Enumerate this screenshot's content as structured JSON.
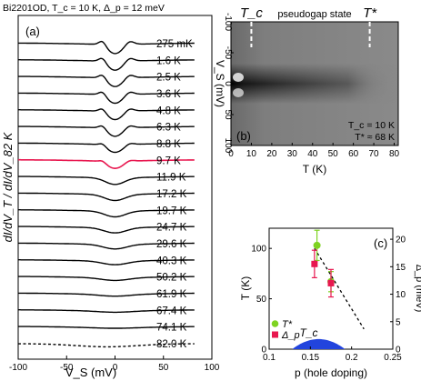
{
  "figure_title": "Bi2201OD, T_c = 10 K, Δ_p = 12 meV",
  "chart_data": [
    {
      "id": "a",
      "panel_label": "(a)",
      "type": "line",
      "xlabel": "V_S (mV)",
      "ylabel": "dI/dV_T / dI/dV_82 K",
      "xlim": [
        -100,
        100
      ],
      "xticks": [
        -100,
        -50,
        0,
        50,
        100
      ],
      "highlight_color": "#e8174f",
      "series": [
        {
          "name": "275 mK",
          "depth": 0.3,
          "width": 11,
          "coherence": 0.17,
          "color": "#000000"
        },
        {
          "name": "1.6 K",
          "depth": 0.3,
          "width": 11,
          "coherence": 0.16,
          "color": "#000000"
        },
        {
          "name": "2.5 K",
          "depth": 0.29,
          "width": 11,
          "coherence": 0.15,
          "color": "#000000"
        },
        {
          "name": "3.6 K",
          "depth": 0.29,
          "width": 11,
          "coherence": 0.14,
          "color": "#000000"
        },
        {
          "name": "4.8 K",
          "depth": 0.28,
          "width": 11,
          "coherence": 0.13,
          "color": "#000000"
        },
        {
          "name": "6.3 K",
          "depth": 0.28,
          "width": 11,
          "coherence": 0.12,
          "color": "#000000"
        },
        {
          "name": "8.8 K",
          "depth": 0.26,
          "width": 12,
          "coherence": 0.09,
          "color": "#000000"
        },
        {
          "name": "9.7 K",
          "depth": 0.24,
          "width": 12,
          "coherence": 0.07,
          "color": "#e8174f"
        },
        {
          "name": "11.9 K",
          "depth": 0.22,
          "width": 14,
          "coherence": 0.0,
          "color": "#000000"
        },
        {
          "name": "17.2 K",
          "depth": 0.2,
          "width": 15,
          "coherence": 0.0,
          "color": "#000000"
        },
        {
          "name": "19.7 K",
          "depth": 0.19,
          "width": 15,
          "coherence": 0.0,
          "color": "#000000"
        },
        {
          "name": "24.7 K",
          "depth": 0.17,
          "width": 16,
          "coherence": 0.0,
          "color": "#000000"
        },
        {
          "name": "29.6 K",
          "depth": 0.15,
          "width": 17,
          "coherence": 0.0,
          "color": "#000000"
        },
        {
          "name": "40.3 K",
          "depth": 0.12,
          "width": 18,
          "coherence": 0.0,
          "color": "#000000"
        },
        {
          "name": "50.2 K",
          "depth": 0.09,
          "width": 20,
          "coherence": 0.0,
          "color": "#000000"
        },
        {
          "name": "61.9 K",
          "depth": 0.06,
          "width": 22,
          "coherence": 0.0,
          "color": "#000000"
        },
        {
          "name": "67.4 K",
          "depth": 0.04,
          "width": 24,
          "coherence": 0.0,
          "color": "#000000"
        },
        {
          "name": "74.1 K",
          "depth": 0.02,
          "width": 26,
          "coherence": 0.0,
          "color": "#000000"
        },
        {
          "name": "82.0 K",
          "depth": 0.0,
          "width": 30,
          "coherence": 0.0,
          "color": "#000000",
          "dashed": true
        }
      ]
    },
    {
      "id": "b",
      "panel_label": "(b)",
      "type": "heatmap",
      "xlabel": "T (K)",
      "ylabel": "V_S (mV)",
      "xlim": [
        0,
        82
      ],
      "ylim": [
        -100,
        100
      ],
      "xticks": [
        0,
        10,
        20,
        30,
        40,
        50,
        60,
        70,
        80
      ],
      "yticks": [
        -100,
        -50,
        0,
        50,
        100
      ],
      "markers": [
        {
          "label": "T_c",
          "x": 10
        },
        {
          "label": "T*",
          "x": 68
        }
      ],
      "region_label": "pseudogap state",
      "region_label_color": "#e8174f",
      "annotation_tc": "T_c = 10 K",
      "annotation_tstar": "T* ≈ 68 K"
    },
    {
      "id": "c",
      "panel_label": "(c)",
      "type": "scatter",
      "xlabel": "p (hole doping)",
      "ylabel": "T (K)",
      "y2label": "Δ_p (meV)",
      "xlim": [
        0.1,
        0.25
      ],
      "ylim": [
        0,
        120
      ],
      "y2lim": [
        0,
        22
      ],
      "xticks": [
        0.1,
        0.15,
        0.2,
        0.25
      ],
      "yticks": [
        0,
        50,
        100
      ],
      "y2ticks": [
        0,
        5,
        10,
        15,
        20
      ],
      "series": [
        {
          "name": "T*",
          "color": "#7ed321",
          "points": [
            {
              "x": 0.158,
              "y": 103,
              "err": 15
            },
            {
              "x": 0.175,
              "y": 67,
              "err": 10
            }
          ]
        },
        {
          "name": "Δ_p",
          "color": "#e8174f",
          "axis": "right",
          "points": [
            {
              "x": 0.155,
              "y": 15.5,
              "err": 2.5
            },
            {
              "x": 0.175,
              "y": 12,
              "err": 2.5
            }
          ]
        }
      ],
      "trend_line": {
        "x": [
          0.155,
          0.215
        ],
        "y": [
          100,
          20
        ]
      },
      "dome": {
        "label": "T_c",
        "center": 0.16,
        "half_width": 0.032,
        "peak": 10,
        "color": "#2244dd"
      }
    }
  ]
}
